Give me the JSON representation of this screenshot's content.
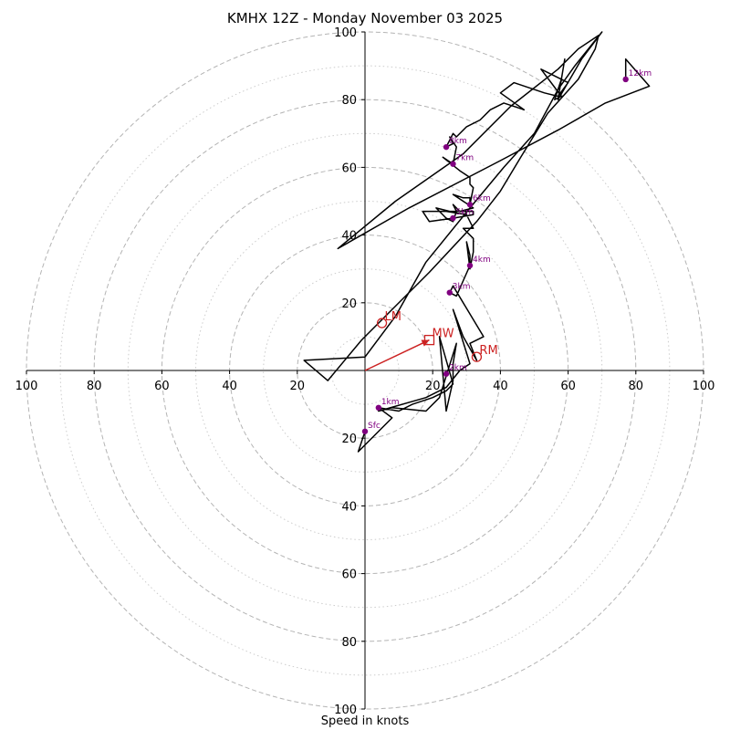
{
  "chart_data": {
    "type": "hodograph",
    "title": "KMHX 12Z - Monday November 03 2025",
    "xlabel": "Speed in knots",
    "axis_range": [
      -100,
      100
    ],
    "ring_major": [
      20,
      40,
      60,
      80,
      100
    ],
    "ring_minor": [
      10,
      30,
      50,
      70,
      90
    ],
    "x_ticks": [
      -100,
      -80,
      -60,
      -40,
      -20,
      20,
      40,
      60,
      80,
      100
    ],
    "y_ticks": [
      -100,
      -80,
      -60,
      -40,
      -20,
      20,
      40,
      60,
      80,
      100
    ],
    "trace_units": "knots (u east, v north)",
    "trace": [
      [
        0,
        -18
      ],
      [
        -2,
        -24
      ],
      [
        3,
        -19
      ],
      [
        8,
        -14
      ],
      [
        4,
        -11
      ],
      [
        10,
        -12
      ],
      [
        14,
        -10
      ],
      [
        20,
        -8
      ],
      [
        24,
        -6
      ],
      [
        26,
        -4
      ],
      [
        22,
        10
      ],
      [
        24,
        -12
      ],
      [
        26,
        -3
      ],
      [
        26,
        2
      ],
      [
        27,
        8
      ],
      [
        22,
        -8
      ],
      [
        18,
        -12
      ],
      [
        8,
        -11
      ],
      [
        4,
        -12
      ],
      [
        18,
        -8
      ],
      [
        24,
        -5
      ],
      [
        28,
        0
      ],
      [
        31,
        2
      ],
      [
        26,
        18
      ],
      [
        29,
        10
      ],
      [
        33,
        3
      ],
      [
        31,
        8
      ],
      [
        35,
        10
      ],
      [
        26,
        25
      ],
      [
        25,
        23
      ],
      [
        27,
        22
      ],
      [
        31,
        31
      ],
      [
        31,
        34
      ],
      [
        30,
        38
      ],
      [
        31,
        30
      ],
      [
        32,
        35
      ],
      [
        32,
        39
      ],
      [
        29,
        42
      ],
      [
        32,
        42
      ],
      [
        30,
        46
      ],
      [
        24,
        47
      ],
      [
        17,
        47
      ],
      [
        19,
        44
      ],
      [
        26,
        45
      ],
      [
        32,
        46
      ],
      [
        32,
        47
      ],
      [
        25,
        47
      ],
      [
        21,
        48
      ],
      [
        24,
        45
      ],
      [
        26,
        44
      ],
      [
        27,
        47
      ],
      [
        26,
        49
      ],
      [
        28,
        47
      ],
      [
        32,
        48
      ],
      [
        26,
        52
      ],
      [
        29,
        51
      ],
      [
        31,
        51
      ],
      [
        31,
        51
      ],
      [
        31,
        49
      ],
      [
        32,
        54
      ],
      [
        31,
        55
      ],
      [
        31,
        57
      ],
      [
        28,
        59
      ],
      [
        23,
        63
      ],
      [
        26,
        61
      ],
      [
        27,
        66
      ],
      [
        25,
        69
      ],
      [
        26,
        67
      ],
      [
        24,
        66
      ],
      [
        26,
        70
      ],
      [
        27,
        69
      ],
      [
        30,
        72
      ],
      [
        34,
        74
      ],
      [
        37,
        77
      ],
      [
        41,
        79
      ],
      [
        44,
        78
      ],
      [
        47,
        77
      ],
      [
        40,
        82
      ],
      [
        44,
        85
      ],
      [
        53,
        82
      ],
      [
        57,
        81
      ],
      [
        60,
        85
      ],
      [
        52,
        89
      ],
      [
        58,
        81
      ],
      [
        56,
        80
      ],
      [
        58,
        86
      ],
      [
        59,
        92
      ],
      [
        57,
        80
      ],
      [
        64,
        92
      ],
      [
        70,
        100
      ],
      [
        62,
        90
      ],
      [
        57,
        83
      ],
      [
        50,
        70
      ],
      [
        41,
        60
      ],
      [
        31,
        48
      ],
      [
        18,
        32
      ],
      [
        9,
        16
      ],
      [
        0,
        4
      ],
      [
        -18,
        3
      ],
      [
        -11,
        -3
      ],
      [
        -1,
        9
      ],
      [
        19,
        29
      ],
      [
        33,
        44
      ],
      [
        40,
        53
      ],
      [
        46,
        63
      ],
      [
        54,
        76
      ],
      [
        63,
        86
      ],
      [
        68,
        95
      ],
      [
        69,
        99
      ],
      [
        63,
        95
      ],
      [
        57,
        89
      ],
      [
        43,
        78
      ],
      [
        29,
        64
      ],
      [
        9,
        50
      ],
      [
        -8,
        36
      ],
      [
        13,
        48
      ],
      [
        40,
        62
      ],
      [
        57,
        71
      ],
      [
        71,
        79
      ],
      [
        84,
        84
      ],
      [
        77,
        92
      ],
      [
        77,
        86
      ]
    ],
    "height_markers": [
      {
        "label": "Sfc",
        "u": 0,
        "v": -18
      },
      {
        "label": "1km",
        "u": 4,
        "v": -11
      },
      {
        "label": "2km",
        "u": 24,
        "v": -1
      },
      {
        "label": "3km",
        "u": 25,
        "v": 23
      },
      {
        "label": "4km",
        "u": 31,
        "v": 31
      },
      {
        "label": "5km",
        "u": 26,
        "v": 45
      },
      {
        "label": "6km",
        "u": 31,
        "v": 49
      },
      {
        "label": "7km",
        "u": 26,
        "v": 61
      },
      {
        "label": "8km",
        "u": 24,
        "v": 66
      },
      {
        "label": "12km",
        "u": 77,
        "v": 86
      }
    ],
    "storm_motions": [
      {
        "label": "LM",
        "u": 5,
        "v": 14,
        "marker": "circle"
      },
      {
        "label": "RM",
        "u": 33,
        "v": 4,
        "marker": "circle"
      },
      {
        "label": "MW",
        "u": 19,
        "v": 9,
        "marker": "square"
      }
    ],
    "mean_wind_vector": {
      "from": [
        0,
        0
      ],
      "to": [
        19,
        9
      ]
    },
    "colors": {
      "trace": "#000000",
      "markers": "#800080",
      "storm": "#cc2222",
      "ring_major": "#b4b4b4",
      "ring_minor": "#cccccc"
    }
  }
}
